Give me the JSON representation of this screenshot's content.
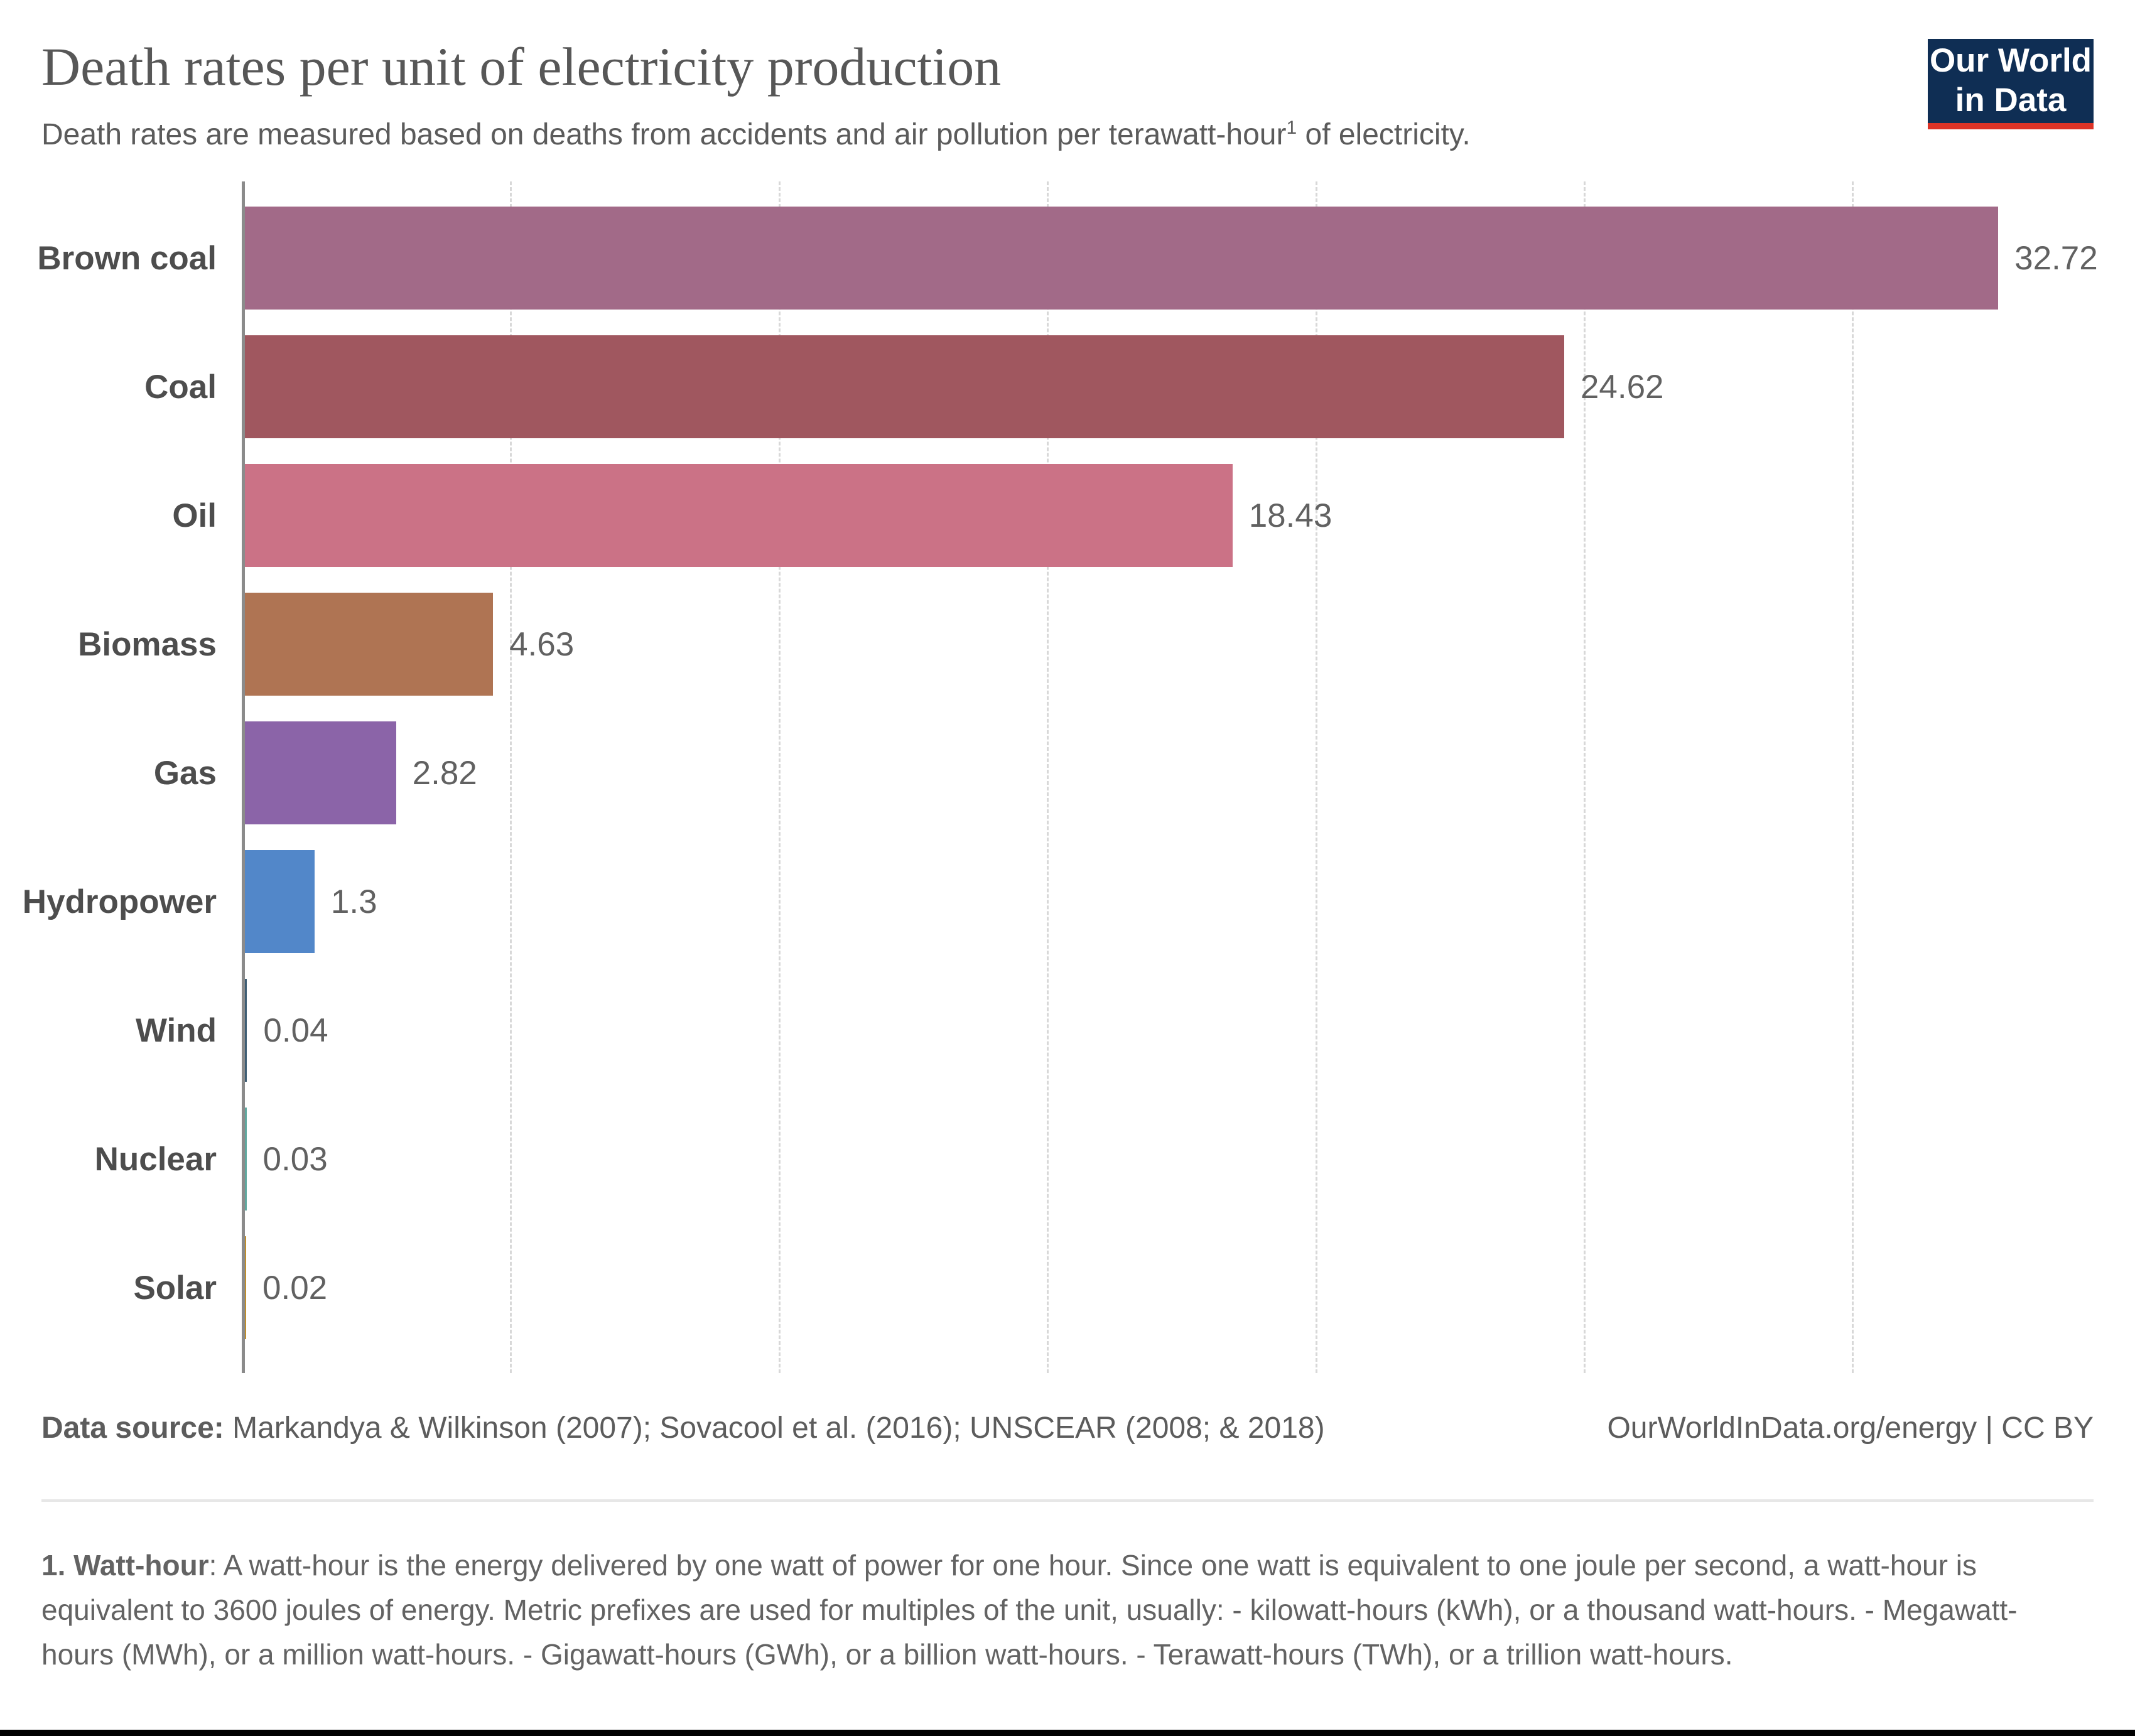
{
  "header": {
    "title": "Death rates per unit of electricity production",
    "subtitle_before": "Death rates are measured based on deaths from accidents and air pollution per terawatt-hour",
    "subtitle_sup": "1",
    "subtitle_after": " of electricity.",
    "logo_line1": "Our World",
    "logo_line2": "in Data"
  },
  "chart_data": {
    "type": "bar",
    "orientation": "horizontal",
    "title": "Death rates per unit of electricity production",
    "xlabel": "",
    "ylabel": "",
    "categories": [
      "Brown coal",
      "Coal",
      "Oil",
      "Biomass",
      "Gas",
      "Hydropower",
      "Wind",
      "Nuclear",
      "Solar"
    ],
    "values": [
      32.72,
      24.62,
      18.43,
      4.63,
      2.82,
      1.3,
      0.04,
      0.03,
      0.02
    ],
    "value_labels": [
      "32.72",
      "24.62",
      "18.43",
      "4.63",
      "2.82",
      "1.3",
      "0.04",
      "0.03",
      "0.02"
    ],
    "bar_colors": [
      "#a26a88",
      "#a0575f",
      "#cb7286",
      "#af7453",
      "#8b64a8",
      "#5287c9",
      "#3d5c73",
      "#5fa79e",
      "#bf8e2c"
    ],
    "xlim": [
      0,
      34.5
    ],
    "gridline_values": [
      5,
      10,
      15,
      20,
      25,
      30
    ],
    "grid": "vertical-dashed",
    "legend": "none"
  },
  "footer": {
    "source_label": "Data source:",
    "source_text": " Markandya & Wilkinson (2007); Sovacool et al. (2016); UNSCEAR (2008; & 2018)",
    "attribution": "OurWorldInData.org/energy | CC BY",
    "footnote_label": "1. Watt-hour",
    "footnote_text": ": A watt-hour is the energy delivered by one watt of power for one hour. Since one watt is equivalent to one joule per second, a watt-hour is equivalent to 3600 joules of energy. Metric prefixes are used for multiples of the unit, usually: - kilowatt-hours (kWh), or a thousand watt-hours. - Megawatt-hours (MWh), or a million watt-hours. - Gigawatt-hours (GWh), or a billion watt-hours. - Terawatt-hours (TWh), or a trillion watt-hours."
  },
  "colors": {
    "logo_navy": "#0f2e54",
    "logo_red": "#dc3327",
    "axis": "#8b8b8b",
    "gridline": "#d8d8d8",
    "category_label": "#4d4d4d",
    "value_label": "#616161",
    "title_text": "#575757",
    "bottom_bar": "#000000"
  }
}
